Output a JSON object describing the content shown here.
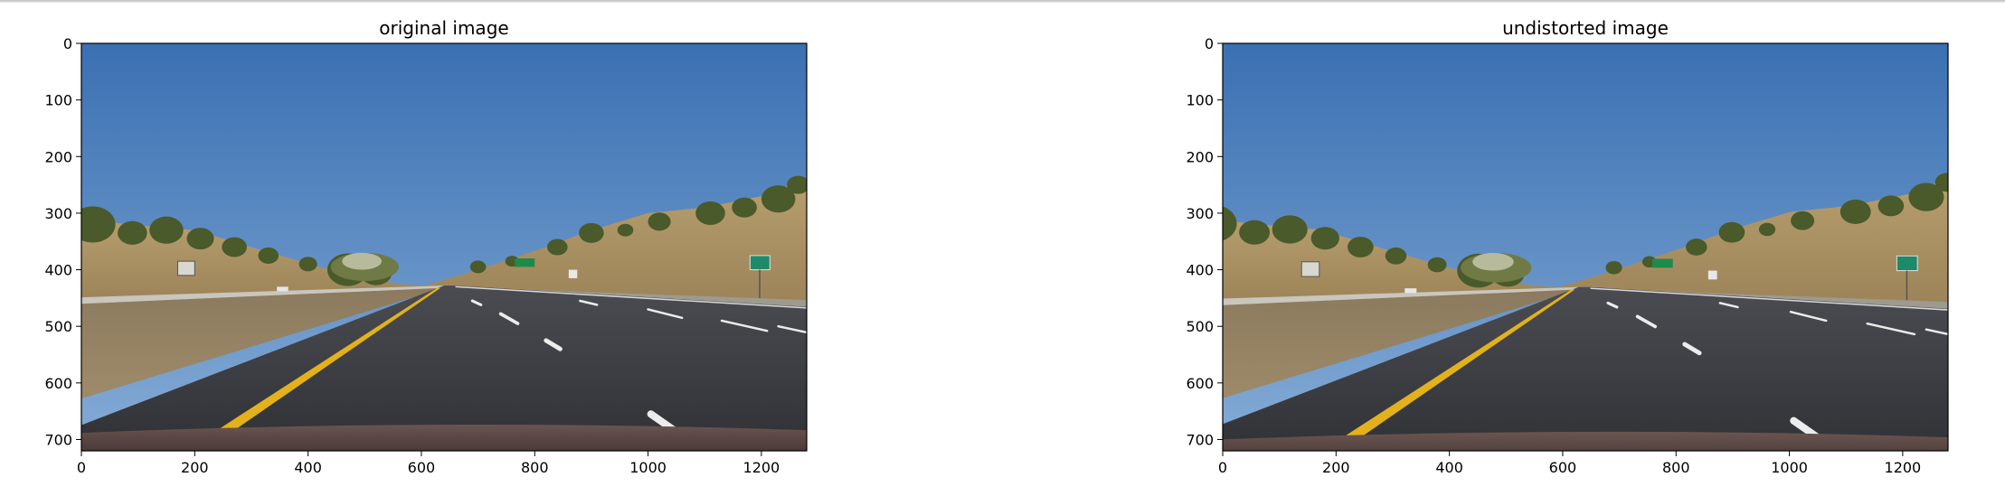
{
  "chart_data": [
    {
      "type": "image",
      "title": "original image",
      "xlim": [
        0,
        1280
      ],
      "ylim": [
        720,
        0
      ],
      "xticks": [
        0,
        200,
        400,
        600,
        800,
        1000,
        1200
      ],
      "yticks": [
        0,
        100,
        200,
        300,
        400,
        500,
        600,
        700
      ],
      "grid": false,
      "image": {
        "description_elements": [
          "sky",
          "hills",
          "trees",
          "road",
          "yellow-lane-line",
          "white-lane-dashes",
          "road-signs",
          "car-hood"
        ],
        "colors": {
          "sky_top": "#3f78b8",
          "sky_bottom": "#7fa9d6",
          "hill": "#b59a6a",
          "road": "#3a3b40",
          "yellow_line": "#e3b21a",
          "white_line": "#ececec",
          "tree": "#4a5a2a",
          "hood": "#5b4844"
        }
      }
    },
    {
      "type": "image",
      "title": "undistorted image",
      "xlim": [
        0,
        1280
      ],
      "ylim": [
        720,
        0
      ],
      "xticks": [
        0,
        200,
        400,
        600,
        800,
        1000,
        1200
      ],
      "yticks": [
        0,
        100,
        200,
        300,
        400,
        500,
        600,
        700
      ],
      "grid": false,
      "image": {
        "description_elements": [
          "sky",
          "hills",
          "trees",
          "road",
          "yellow-lane-line",
          "white-lane-dashes",
          "road-signs",
          "car-hood"
        ],
        "colors": {
          "sky_top": "#3f78b8",
          "sky_bottom": "#7fa9d6",
          "hill": "#b59a6a",
          "road": "#3a3b40",
          "yellow_line": "#e3b21a",
          "white_line": "#ececec",
          "tree": "#4a5a2a",
          "hood": "#5b4844"
        }
      }
    }
  ]
}
